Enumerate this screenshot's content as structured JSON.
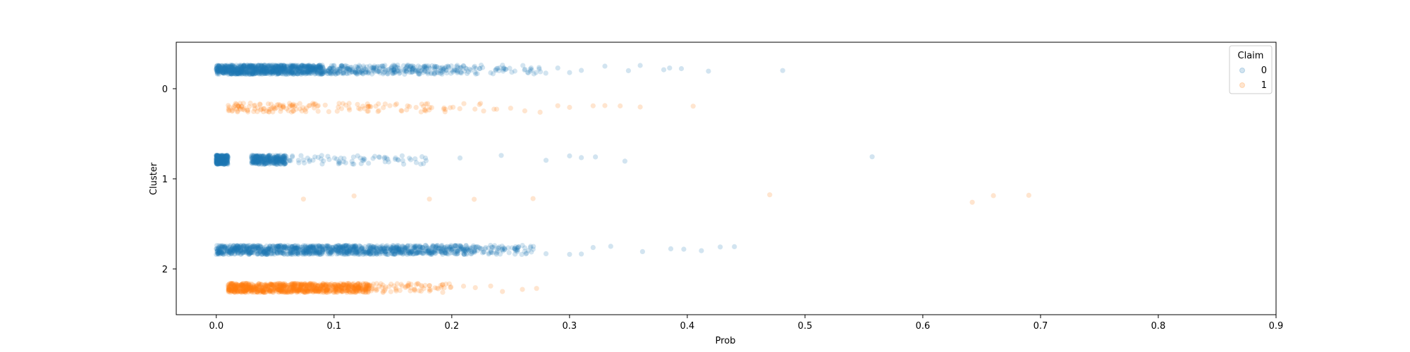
{
  "chart_data": {
    "type": "scatter",
    "subtype": "stripplot",
    "title": "",
    "xlabel": "Prob",
    "ylabel": "Cluster",
    "xlim": [
      -0.034,
      0.9
    ],
    "x_ticks": [
      "0.0",
      "0.1",
      "0.2",
      "0.3",
      "0.4",
      "0.5",
      "0.6",
      "0.7",
      "0.8",
      "0.9"
    ],
    "y_categories": [
      "0",
      "1",
      "2"
    ],
    "grid": false,
    "legend": {
      "title": "Claim",
      "position": "top-right",
      "entries": [
        "0",
        "1"
      ]
    },
    "colors": {
      "0": "#1f77b4",
      "1": "#ff7f0e"
    },
    "point_alpha": 0.2,
    "series": [
      {
        "name": "0",
        "points": [
          {
            "cluster": "0",
            "x_range": [
              0.0,
              0.09
            ],
            "density": "very-high"
          },
          {
            "cluster": "0",
            "x_range": [
              0.09,
              0.2
            ],
            "density": "high"
          },
          {
            "cluster": "0",
            "x_range": [
              0.2,
              0.28
            ],
            "density": "medium"
          },
          {
            "cluster": "0",
            "x": [
              0.29,
              0.3,
              0.31,
              0.33,
              0.35,
              0.36,
              0.38,
              0.385,
              0.395,
              0.418,
              0.481
            ]
          },
          {
            "cluster": "1",
            "x_range": [
              0.0,
              0.01
            ],
            "density": "high"
          },
          {
            "cluster": "1",
            "x_range": [
              0.03,
              0.06
            ],
            "density": "high"
          },
          {
            "cluster": "1",
            "x_range": [
              0.06,
              0.18
            ],
            "density": "medium"
          },
          {
            "cluster": "1",
            "x": [
              0.207,
              0.242,
              0.28,
              0.3,
              0.31,
              0.322,
              0.347,
              0.557
            ]
          },
          {
            "cluster": "2",
            "x_range": [
              0.0,
              0.15
            ],
            "density": "very-high"
          },
          {
            "cluster": "2",
            "x_range": [
              0.15,
              0.22
            ],
            "density": "high"
          },
          {
            "cluster": "2",
            "x_range": [
              0.22,
              0.27
            ],
            "density": "medium"
          },
          {
            "cluster": "2",
            "x": [
              0.28,
              0.3,
              0.31,
              0.32,
              0.335,
              0.362,
              0.386,
              0.397,
              0.412,
              0.428,
              0.44
            ]
          }
        ]
      },
      {
        "name": "1",
        "points": [
          {
            "cluster": "0",
            "x_range": [
              0.01,
              0.06
            ],
            "density": "medium"
          },
          {
            "cluster": "0",
            "x_range": [
              0.06,
              0.17
            ],
            "density": "medium"
          },
          {
            "cluster": "0",
            "x_range": [
              0.17,
              0.24
            ],
            "density": "low"
          },
          {
            "cluster": "0",
            "x": [
              0.25,
              0.262,
              0.275,
              0.29,
              0.3,
              0.32,
              0.33,
              0.343,
              0.36,
              0.405
            ]
          },
          {
            "cluster": "1",
            "x": [
              0.074,
              0.117,
              0.181,
              0.219,
              0.269,
              0.47,
              0.642,
              0.66,
              0.69
            ]
          },
          {
            "cluster": "2",
            "x_range": [
              0.01,
              0.13
            ],
            "density": "very-high"
          },
          {
            "cluster": "2",
            "x_range": [
              0.13,
              0.2
            ],
            "density": "medium"
          },
          {
            "cluster": "2",
            "x": [
              0.21,
              0.22,
              0.233,
              0.243,
              0.26,
              0.272
            ]
          }
        ]
      }
    ]
  }
}
